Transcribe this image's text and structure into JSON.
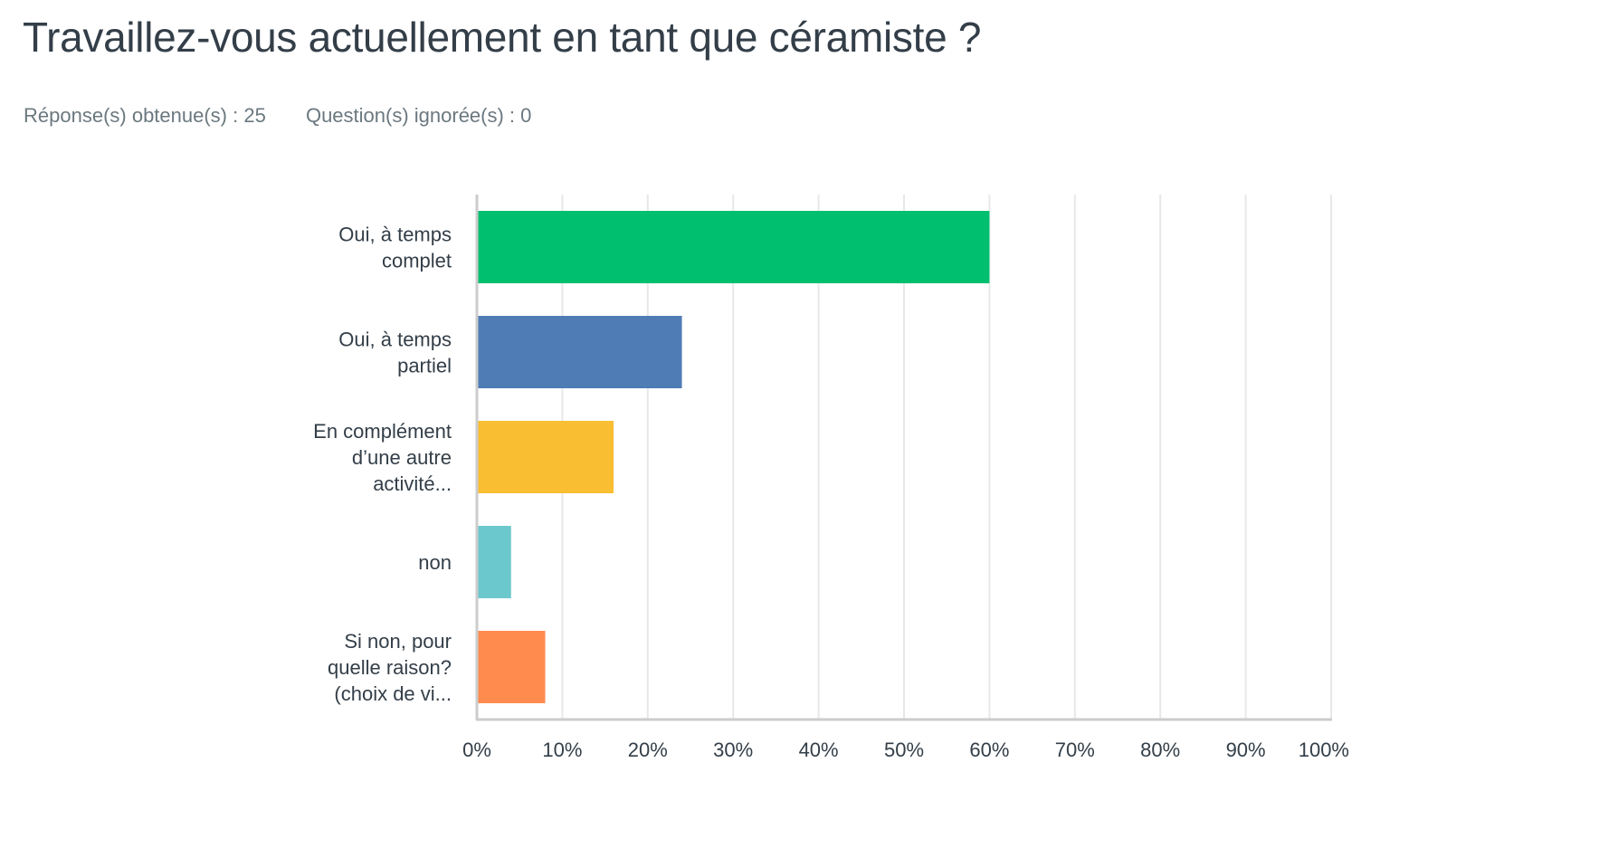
{
  "header": {
    "title": "Travaillez-vous actuellement en tant que céramiste ?",
    "answered": "Réponse(s) obtenue(s) : 25",
    "skipped": "Question(s) ignorée(s) : 0"
  },
  "chart_data": {
    "type": "bar",
    "orientation": "horizontal",
    "title": "Travaillez-vous actuellement en tant que céramiste ?",
    "xlabel": "",
    "ylabel": "",
    "xlim": [
      0,
      100
    ],
    "grid": true,
    "legend": "none",
    "categories": [
      "Oui, à temps complet",
      "Oui, à temps partiel",
      "En complément d’une autre activité...",
      "non",
      "Si non, pour quelle raison? (choix de vi..."
    ],
    "category_label_lines": [
      [
        "Oui, à temps",
        "complet"
      ],
      [
        "Oui, à temps",
        "partiel"
      ],
      [
        "En complément",
        "d’une autre",
        "activité..."
      ],
      [
        "non"
      ],
      [
        "Si non, pour",
        "quelle raison?",
        "(choix de vi..."
      ]
    ],
    "values": [
      60,
      24,
      16,
      4,
      8
    ],
    "unit": "%",
    "colors": [
      "#00bf6f",
      "#507cb6",
      "#f9be31",
      "#6bc8cd",
      "#ff8b4f"
    ],
    "x_ticks": [
      0,
      10,
      20,
      30,
      40,
      50,
      60,
      70,
      80,
      90,
      100
    ],
    "x_tick_labels": [
      "0%",
      "10%",
      "20%",
      "30%",
      "40%",
      "50%",
      "60%",
      "70%",
      "80%",
      "90%",
      "100%"
    ]
  }
}
